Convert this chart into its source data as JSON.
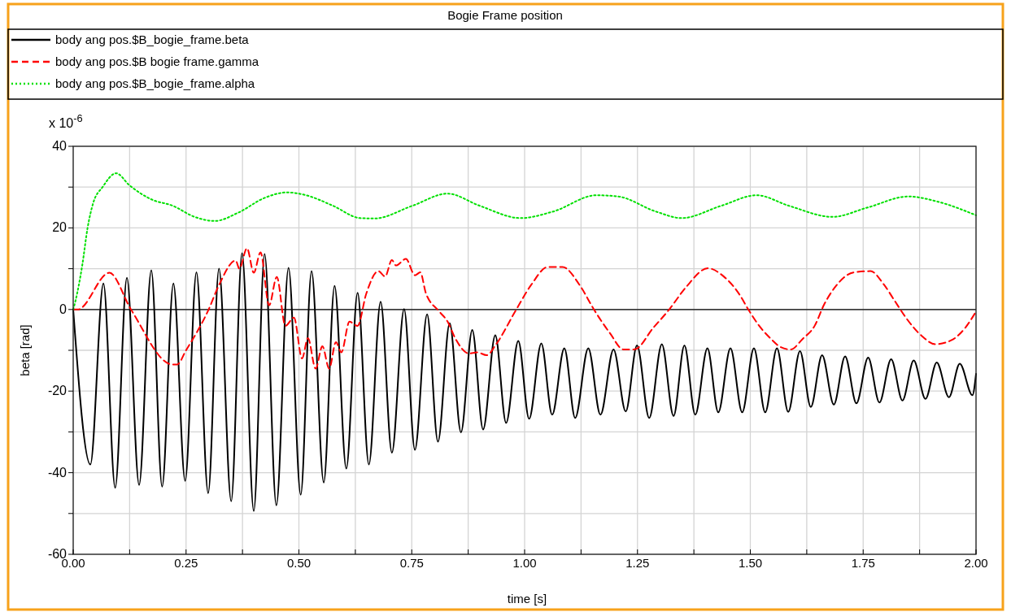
{
  "chart_data": {
    "type": "line",
    "title": "Bogie Frame position",
    "xlabel": "time [s]",
    "ylabel": "beta  [rad]",
    "annotations": [
      "x 10$^{-6}$"
    ],
    "xlim": [
      0,
      2
    ],
    "ylim": [
      -60,
      40
    ],
    "xticks": [
      {
        "value": 0,
        "label": "0.00"
      },
      {
        "value": 0.125,
        "label": null
      },
      {
        "value": 0.25,
        "label": "0.25"
      },
      {
        "value": 0.375,
        "label": null
      },
      {
        "value": 0.5,
        "label": "0.50"
      },
      {
        "value": 0.625,
        "label": null
      },
      {
        "value": 0.75,
        "label": "0.75"
      },
      {
        "value": 0.875,
        "label": null
      },
      {
        "value": 1,
        "label": "1.00"
      },
      {
        "value": 1.125,
        "label": null
      },
      {
        "value": 1.25,
        "label": "1.25"
      },
      {
        "value": 1.375,
        "label": null
      },
      {
        "value": 1.5,
        "label": "1.50"
      },
      {
        "value": 1.625,
        "label": null
      },
      {
        "value": 1.75,
        "label": "1.75"
      },
      {
        "value": 1.875,
        "label": null
      },
      {
        "value": 2,
        "label": "2.00"
      }
    ],
    "yticks": [
      -60,
      {
        "value": -50,
        "label": null
      },
      -40,
      {
        "value": -30,
        "label": null
      },
      -20,
      {
        "value": -10,
        "label": null
      },
      0,
      {
        "value": 10,
        "label": null
      },
      20,
      {
        "value": 30,
        "label": null
      },
      40
    ],
    "grid": true,
    "legend": "top",
    "marker": "none",
    "ref_lines": [
      {
        "axis": "y",
        "value": 0,
        "color": "#000000",
        "line_style": "solid"
      }
    ],
    "series": [
      {
        "name": "body ang pos.$B_bogie_frame.beta",
        "color": "#000000",
        "line_style": "solid",
        "x": [
          0,
          0.038,
          0.067,
          0.093,
          0.119,
          0.146,
          0.173,
          0.197,
          0.222,
          0.248,
          0.273,
          0.299,
          0.323,
          0.35,
          0.374,
          0.4,
          0.424,
          0.45,
          0.477,
          0.504,
          0.528,
          0.555,
          0.579,
          0.605,
          0.63,
          0.655,
          0.681,
          0.706,
          0.733,
          0.757,
          0.784,
          0.808,
          0.834,
          0.859,
          0.884,
          0.908,
          0.935,
          0.959,
          0.986,
          1.01,
          1.037,
          1.061,
          1.088,
          1.112,
          1.141,
          1.168,
          1.197,
          1.224,
          1.249,
          1.276,
          1.304,
          1.33,
          1.354,
          1.378,
          1.405,
          1.429,
          1.456,
          1.482,
          1.508,
          1.533,
          1.559,
          1.584,
          1.61,
          1.634,
          1.659,
          1.685,
          1.71,
          1.735,
          1.761,
          1.786,
          1.812,
          1.837,
          1.862,
          1.888,
          1.913,
          1.94,
          1.964,
          1.992,
          2.0
        ],
        "values": [
          0,
          -38,
          6.4,
          -43.7,
          7.8,
          -43,
          9.6,
          -43.4,
          6.4,
          -42,
          9.1,
          -45,
          10,
          -47,
          13.8,
          -49.4,
          13.6,
          -48,
          10.2,
          -45.4,
          9.4,
          -42.4,
          5.8,
          -39,
          4.1,
          -38,
          1.9,
          -35.1,
          0.1,
          -34.4,
          -1.2,
          -32.4,
          -3.4,
          -30.1,
          -5,
          -29.4,
          -6.3,
          -27.8,
          -7.7,
          -26.8,
          -8.3,
          -25.8,
          -9.5,
          -26.6,
          -9.5,
          -25.8,
          -9.8,
          -25,
          -8.8,
          -26.6,
          -8.5,
          -26.1,
          -8.8,
          -25.8,
          -9.5,
          -25.2,
          -9.5,
          -25.2,
          -9.5,
          -25.2,
          -9.5,
          -25.1,
          -10.2,
          -23.9,
          -11.2,
          -23.3,
          -11.5,
          -23,
          -11.8,
          -22.8,
          -12.2,
          -22.3,
          -12.5,
          -21.9,
          -13,
          -21.5,
          -13.3,
          -21,
          -15.8
        ]
      },
      {
        "name": "body ang pos.$B  bogie  frame.gamma",
        "color": "#ff0000",
        "line_style": "dashed",
        "x": [
          0,
          0.01,
          0.08,
          0.128,
          0.22,
          0.23,
          0.25,
          0.3,
          0.323,
          0.36,
          0.368,
          0.385,
          0.4,
          0.415,
          0.434,
          0.451,
          0.47,
          0.489,
          0.507,
          0.52,
          0.537,
          0.552,
          0.567,
          0.582,
          0.594,
          0.612,
          0.63,
          0.649,
          0.676,
          0.691,
          0.706,
          0.715,
          0.737,
          0.757,
          0.769,
          0.781,
          0.811,
          0.829,
          0.847,
          0.877,
          0.895,
          0.916,
          0.937,
          0.979,
          1.015,
          1.051,
          1.084,
          1.123,
          1.153,
          1.189,
          1.219,
          1.243,
          1.285,
          1.321,
          1.357,
          1.406,
          1.441,
          1.477,
          1.495,
          1.519,
          1.543,
          1.567,
          1.589,
          1.616,
          1.643,
          1.663,
          1.69,
          1.729,
          1.766,
          1.796,
          1.82,
          1.844,
          1.88,
          1.91,
          1.946,
          1.976,
          2.0
        ],
        "values": [
          0,
          0,
          9,
          0,
          -13.5,
          -13.5,
          -10,
          0,
          6,
          12,
          10,
          15,
          9,
          14,
          1,
          8,
          -4,
          -2,
          -12,
          -7,
          -14.5,
          -9,
          -14.5,
          -8,
          -10.5,
          -3,
          -4,
          3.8,
          9.4,
          8.1,
          12.1,
          10.8,
          12.4,
          8.4,
          9.1,
          4.1,
          -0.5,
          -2.9,
          -7.2,
          -10.8,
          -10.5,
          -11.2,
          -8.5,
          -0.5,
          6.1,
          10.4,
          10.4,
          5.8,
          0.1,
          -5.8,
          -9.8,
          -9.8,
          -4.5,
          0.1,
          5.4,
          10.1,
          8.1,
          3.5,
          0.1,
          -3.9,
          -6.9,
          -9.2,
          -9.8,
          -7.2,
          -3.9,
          1.1,
          5.8,
          9.1,
          9.4,
          6.1,
          2.1,
          -1.9,
          -6.5,
          -8.5,
          -7.5,
          -4.5,
          -0.5
        ]
      },
      {
        "name": "body ang pos.$B_bogie_frame.alpha",
        "color": "#00e000",
        "line_style": "dotted",
        "x": [
          0,
          0.005,
          0.02,
          0.032,
          0.044,
          0.065,
          0.095,
          0.125,
          0.173,
          0.221,
          0.269,
          0.314,
          0.365,
          0.425,
          0.474,
          0.516,
          0.576,
          0.636,
          0.667,
          0.751,
          0.829,
          0.901,
          0.991,
          1.063,
          1.159,
          1.207,
          1.291,
          1.348,
          1.435,
          1.514,
          1.586,
          1.682,
          1.76,
          1.85,
          1.916,
          2.0
        ],
        "values": [
          0,
          2.1,
          10.8,
          20.1,
          26,
          30,
          33.4,
          30.4,
          27,
          25.4,
          22.7,
          21.7,
          23.7,
          27.4,
          28.7,
          28,
          25.4,
          22.4,
          22.3,
          25.4,
          28.4,
          25.4,
          22.4,
          24,
          28,
          27.7,
          24,
          22.4,
          25.4,
          28,
          25.4,
          22.7,
          25,
          27.7,
          26.4,
          23.1
        ]
      }
    ]
  }
}
